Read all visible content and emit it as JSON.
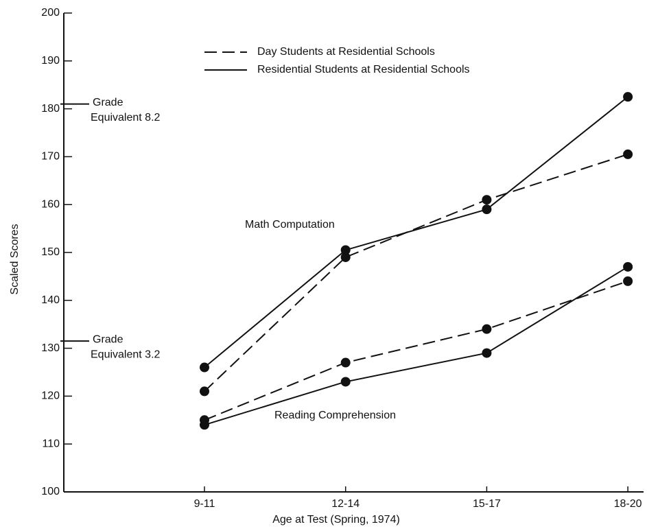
{
  "chart_data": {
    "type": "line",
    "x_label": "Age at Test (Spring, 1974)",
    "y_label": "Scaled Scores",
    "categories": [
      "9-11",
      "12-14",
      "15-17",
      "18-20"
    ],
    "series": [
      {
        "name": "Day Students at Residential Schools",
        "dash": true,
        "color": "#111111",
        "values": [
          121,
          149,
          161,
          170.5
        ]
      },
      {
        "name": "Residential Students at Residential Schools",
        "dash": false,
        "color": "#111111",
        "values": [
          126,
          150.5,
          159,
          182.5
        ]
      },
      {
        "name": "Day Students at Residential Schools",
        "dash": true,
        "color": "#111111",
        "values": [
          115,
          127,
          134,
          144
        ]
      },
      {
        "name": "Residential Students at Residential Schools",
        "dash": false,
        "color": "#111111",
        "values": [
          114,
          123,
          129,
          147
        ]
      }
    ],
    "ylim": [
      100,
      200
    ],
    "yticks": [
      100,
      110,
      120,
      130,
      140,
      150,
      160,
      170,
      180,
      190,
      200
    ],
    "annotations": [
      {
        "text": "Math Computation"
      },
      {
        "text": "Reading Comprehension"
      }
    ],
    "reference_marks": [
      {
        "value": 181,
        "lines": [
          "Grade",
          "Equivalent 8.2"
        ]
      },
      {
        "value": 131.5,
        "lines": [
          "Grade",
          "Equivalent 3.2"
        ]
      }
    ]
  }
}
